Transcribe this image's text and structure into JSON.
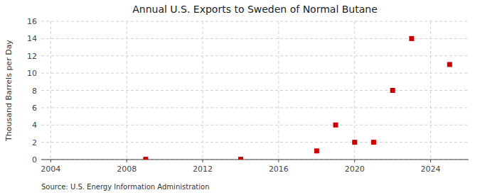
{
  "chart_data": {
    "type": "scatter",
    "title": "Annual U.S. Exports to Sweden of Normal Butane",
    "ylabel": "Thousand Barrels per Day",
    "source": "Source: U.S. Energy Information Administration",
    "x": [
      2009,
      2014,
      2018,
      2019,
      2020,
      2021,
      2022,
      2023,
      2025
    ],
    "values": [
      0.03,
      0.03,
      1.0,
      4.0,
      2.0,
      2.0,
      8.0,
      14.0,
      11.0
    ],
    "color": "#cc0000",
    "marker": "square",
    "xlim": [
      2003.5,
      2026
    ],
    "ylim": [
      0,
      16
    ],
    "xticks": [
      2004,
      2008,
      2012,
      2016,
      2020,
      2024
    ],
    "yticks": [
      0,
      2,
      4,
      6,
      8,
      10,
      12,
      14,
      16
    ],
    "grid": true
  }
}
